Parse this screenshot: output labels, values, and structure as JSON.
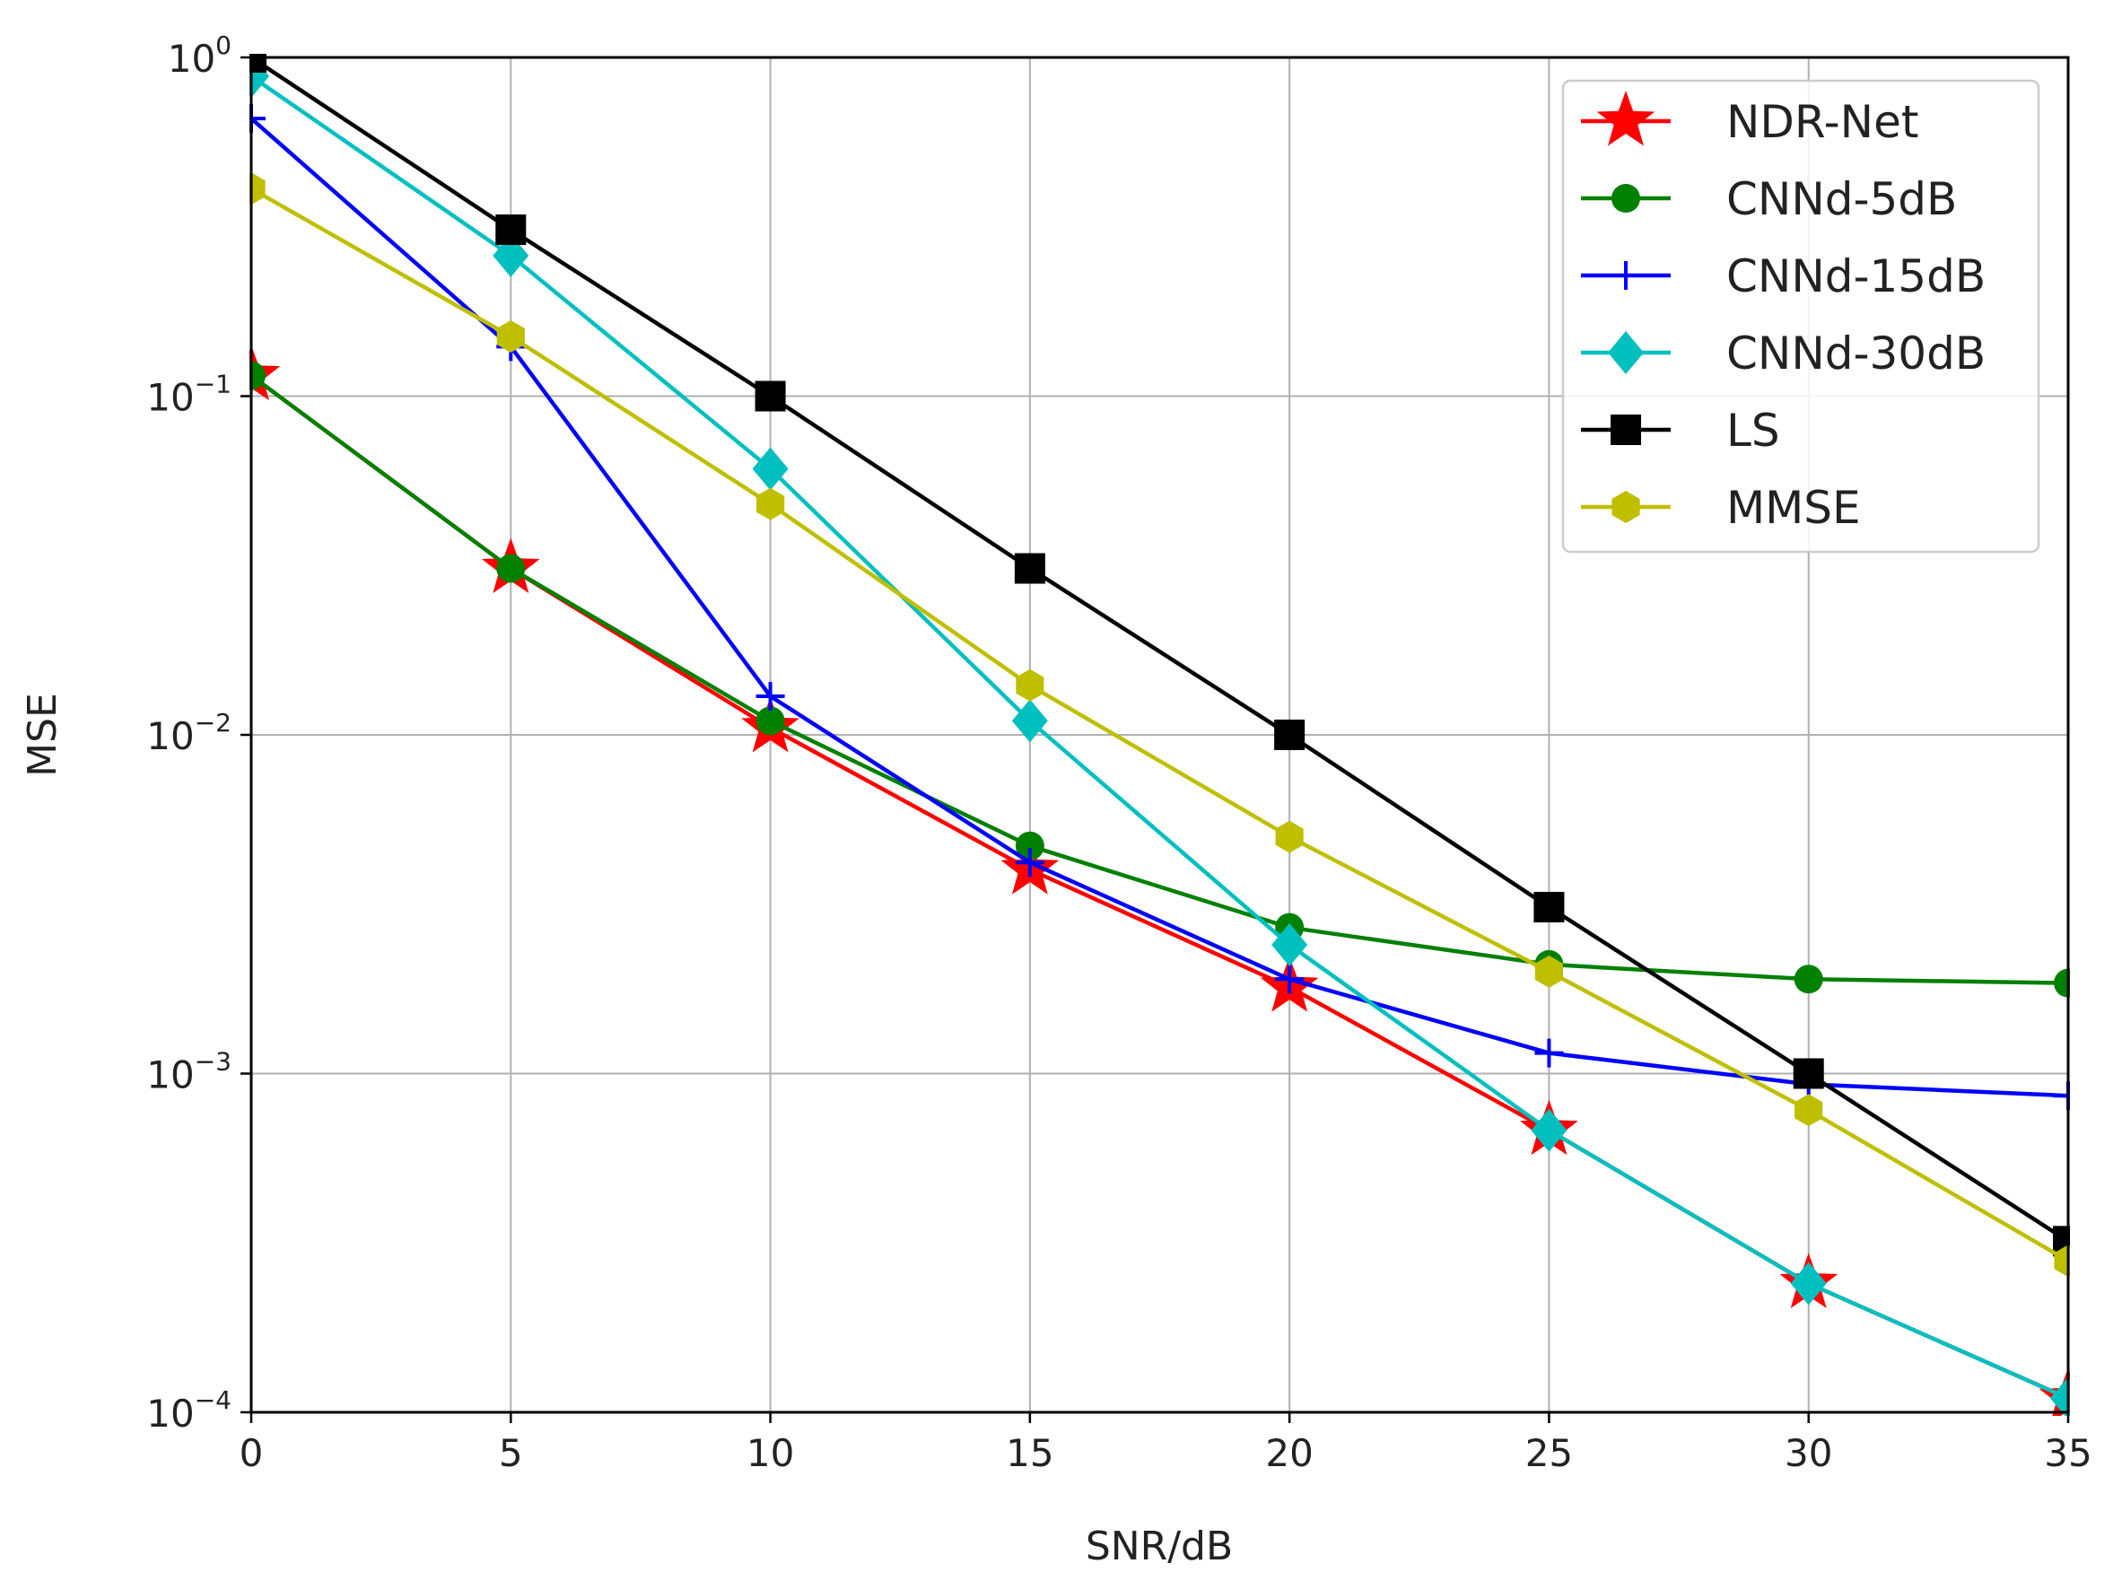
{
  "chart_data": {
    "type": "line",
    "title": "",
    "xlabel": "SNR/dB",
    "ylabel": "MSE",
    "xlim": [
      0,
      35
    ],
    "ylim": [
      0.0001,
      1
    ],
    "yscale": "log",
    "grid": true,
    "legend_position": "top-right",
    "x": [
      0,
      5,
      10,
      15,
      20,
      25,
      30,
      35
    ],
    "x_ticks": [
      "0",
      "5",
      "10",
      "15",
      "20",
      "25",
      "30",
      "35"
    ],
    "y_ticks": [
      {
        "base": "10",
        "exp": "0",
        "value": 1
      },
      {
        "base": "10",
        "exp": "−1",
        "value": 0.1
      },
      {
        "base": "10",
        "exp": "−2",
        "value": 0.01
      },
      {
        "base": "10",
        "exp": "−3",
        "value": 0.001
      },
      {
        "base": "10",
        "exp": "−4",
        "value": 0.0001
      }
    ],
    "series": [
      {
        "name": "NDR-Net",
        "color": "#ff0000",
        "marker": "star",
        "values": [
          0.115,
          0.031,
          0.0105,
          0.004,
          0.0018,
          0.00068,
          0.00024,
          0.00011
        ]
      },
      {
        "name": "CNNd-5dB",
        "color": "#008000",
        "marker": "circle",
        "values": [
          0.115,
          0.031,
          0.011,
          0.0047,
          0.0027,
          0.0021,
          0.0019,
          0.00185
        ]
      },
      {
        "name": "CNNd-15dB",
        "color": "#0000ff",
        "marker": "plus",
        "values": [
          0.66,
          0.14,
          0.013,
          0.0042,
          0.0019,
          0.00115,
          0.00093,
          0.00086
        ]
      },
      {
        "name": "CNNd-30dB",
        "color": "#00bfbf",
        "marker": "diamond",
        "values": [
          0.88,
          0.26,
          0.061,
          0.011,
          0.0024,
          0.00068,
          0.00024,
          0.00011
        ]
      },
      {
        "name": "LS",
        "color": "#000000",
        "marker": "square",
        "values": [
          1.0,
          0.31,
          0.1,
          0.031,
          0.01,
          0.0031,
          0.001,
          0.00032
        ]
      },
      {
        "name": "MMSE",
        "color": "#bfbf00",
        "marker": "hexagon",
        "values": [
          0.41,
          0.15,
          0.048,
          0.014,
          0.005,
          0.002,
          0.00078,
          0.00028
        ]
      }
    ]
  }
}
